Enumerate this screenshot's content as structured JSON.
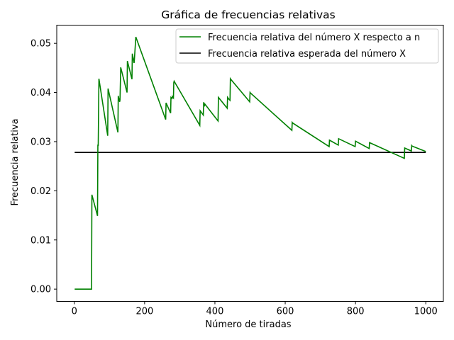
{
  "chart_data": {
    "type": "line",
    "title": "Gráfica de frecuencias relativas",
    "xlabel": "Número de tiradas",
    "ylabel": "Frecuencia relativa",
    "xlim": [
      -50,
      1050
    ],
    "ylim": [
      -0.0025,
      0.0537
    ],
    "xticks": [
      0,
      200,
      400,
      600,
      800,
      1000
    ],
    "xtick_labels": [
      "0",
      "200",
      "400",
      "600",
      "800",
      "1000"
    ],
    "yticks": [
      0.0,
      0.01,
      0.02,
      0.03,
      0.04,
      0.05
    ],
    "ytick_labels": [
      "0.00",
      "0.01",
      "0.02",
      "0.03",
      "0.04",
      "0.05"
    ],
    "grid": false,
    "legend_position": "top-right",
    "series": [
      {
        "name": "Frecuencia relativa del número X respecto a n",
        "color": "#008000",
        "x": [
          1,
          49,
          50,
          66,
          67,
          68,
          70,
          95,
          96,
          124,
          125,
          129,
          130,
          132,
          150,
          151,
          164,
          165,
          170,
          171,
          175,
          176,
          260,
          261,
          274,
          275,
          278,
          279,
          282,
          283,
          284,
          357,
          358,
          367,
          368,
          371,
          372,
          409,
          410,
          435,
          436,
          438,
          439,
          443,
          444,
          445,
          499,
          500,
          501,
          619,
          620,
          621,
          725,
          726,
          751,
          752,
          799,
          800,
          839,
          840,
          939,
          940,
          959,
          960,
          961,
          1000
        ],
        "y": [
          0.0,
          0.0,
          0.0192,
          0.0149,
          0.0294,
          0.0291,
          0.0428,
          0.0312,
          0.0408,
          0.0319,
          0.0393,
          0.0381,
          0.0385,
          0.0451,
          0.04,
          0.0464,
          0.0427,
          0.0479,
          0.046,
          0.0468,
          0.0513,
          0.0511,
          0.0345,
          0.0379,
          0.0358,
          0.039,
          0.0388,
          0.0392,
          0.0389,
          0.042,
          0.0423,
          0.0333,
          0.0363,
          0.0354,
          0.038,
          0.0374,
          0.0376,
          0.0342,
          0.039,
          0.0368,
          0.039,
          0.0388,
          0.0387,
          0.0384,
          0.0428,
          0.0427,
          0.0381,
          0.04,
          0.0399,
          0.0323,
          0.0339,
          0.0338,
          0.029,
          0.0303,
          0.0293,
          0.0306,
          0.029,
          0.0301,
          0.0286,
          0.0298,
          0.0266,
          0.0287,
          0.0281,
          0.0292,
          0.0291,
          0.028
        ]
      },
      {
        "name": "Frecuencia relativa esperada del número X",
        "color": "#000000",
        "x": [
          1,
          1000
        ],
        "y": [
          0.0278,
          0.0278
        ]
      }
    ]
  }
}
